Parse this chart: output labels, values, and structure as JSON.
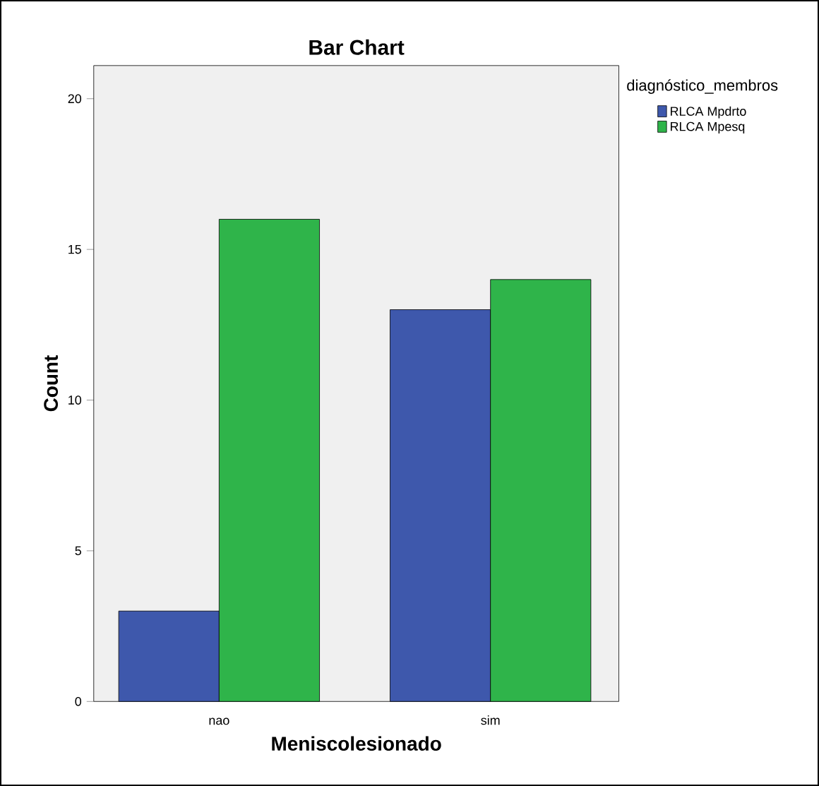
{
  "chart_data": {
    "type": "bar",
    "title": "Bar Chart",
    "xlabel": "Meniscolesionado",
    "ylabel": "Count",
    "legend_title": "diagnóstico_membros",
    "categories": [
      "nao",
      "sim"
    ],
    "series": [
      {
        "name": "RLCA Mpdrto",
        "color": "#3e58ac",
        "values": [
          3,
          13
        ]
      },
      {
        "name": "RLCA Mpesq",
        "color": "#2fb44a",
        "values": [
          16,
          14
        ]
      }
    ],
    "ylim": [
      0,
      21.1
    ],
    "yticks": [
      0,
      5,
      10,
      15,
      20
    ],
    "legend": "top right"
  }
}
